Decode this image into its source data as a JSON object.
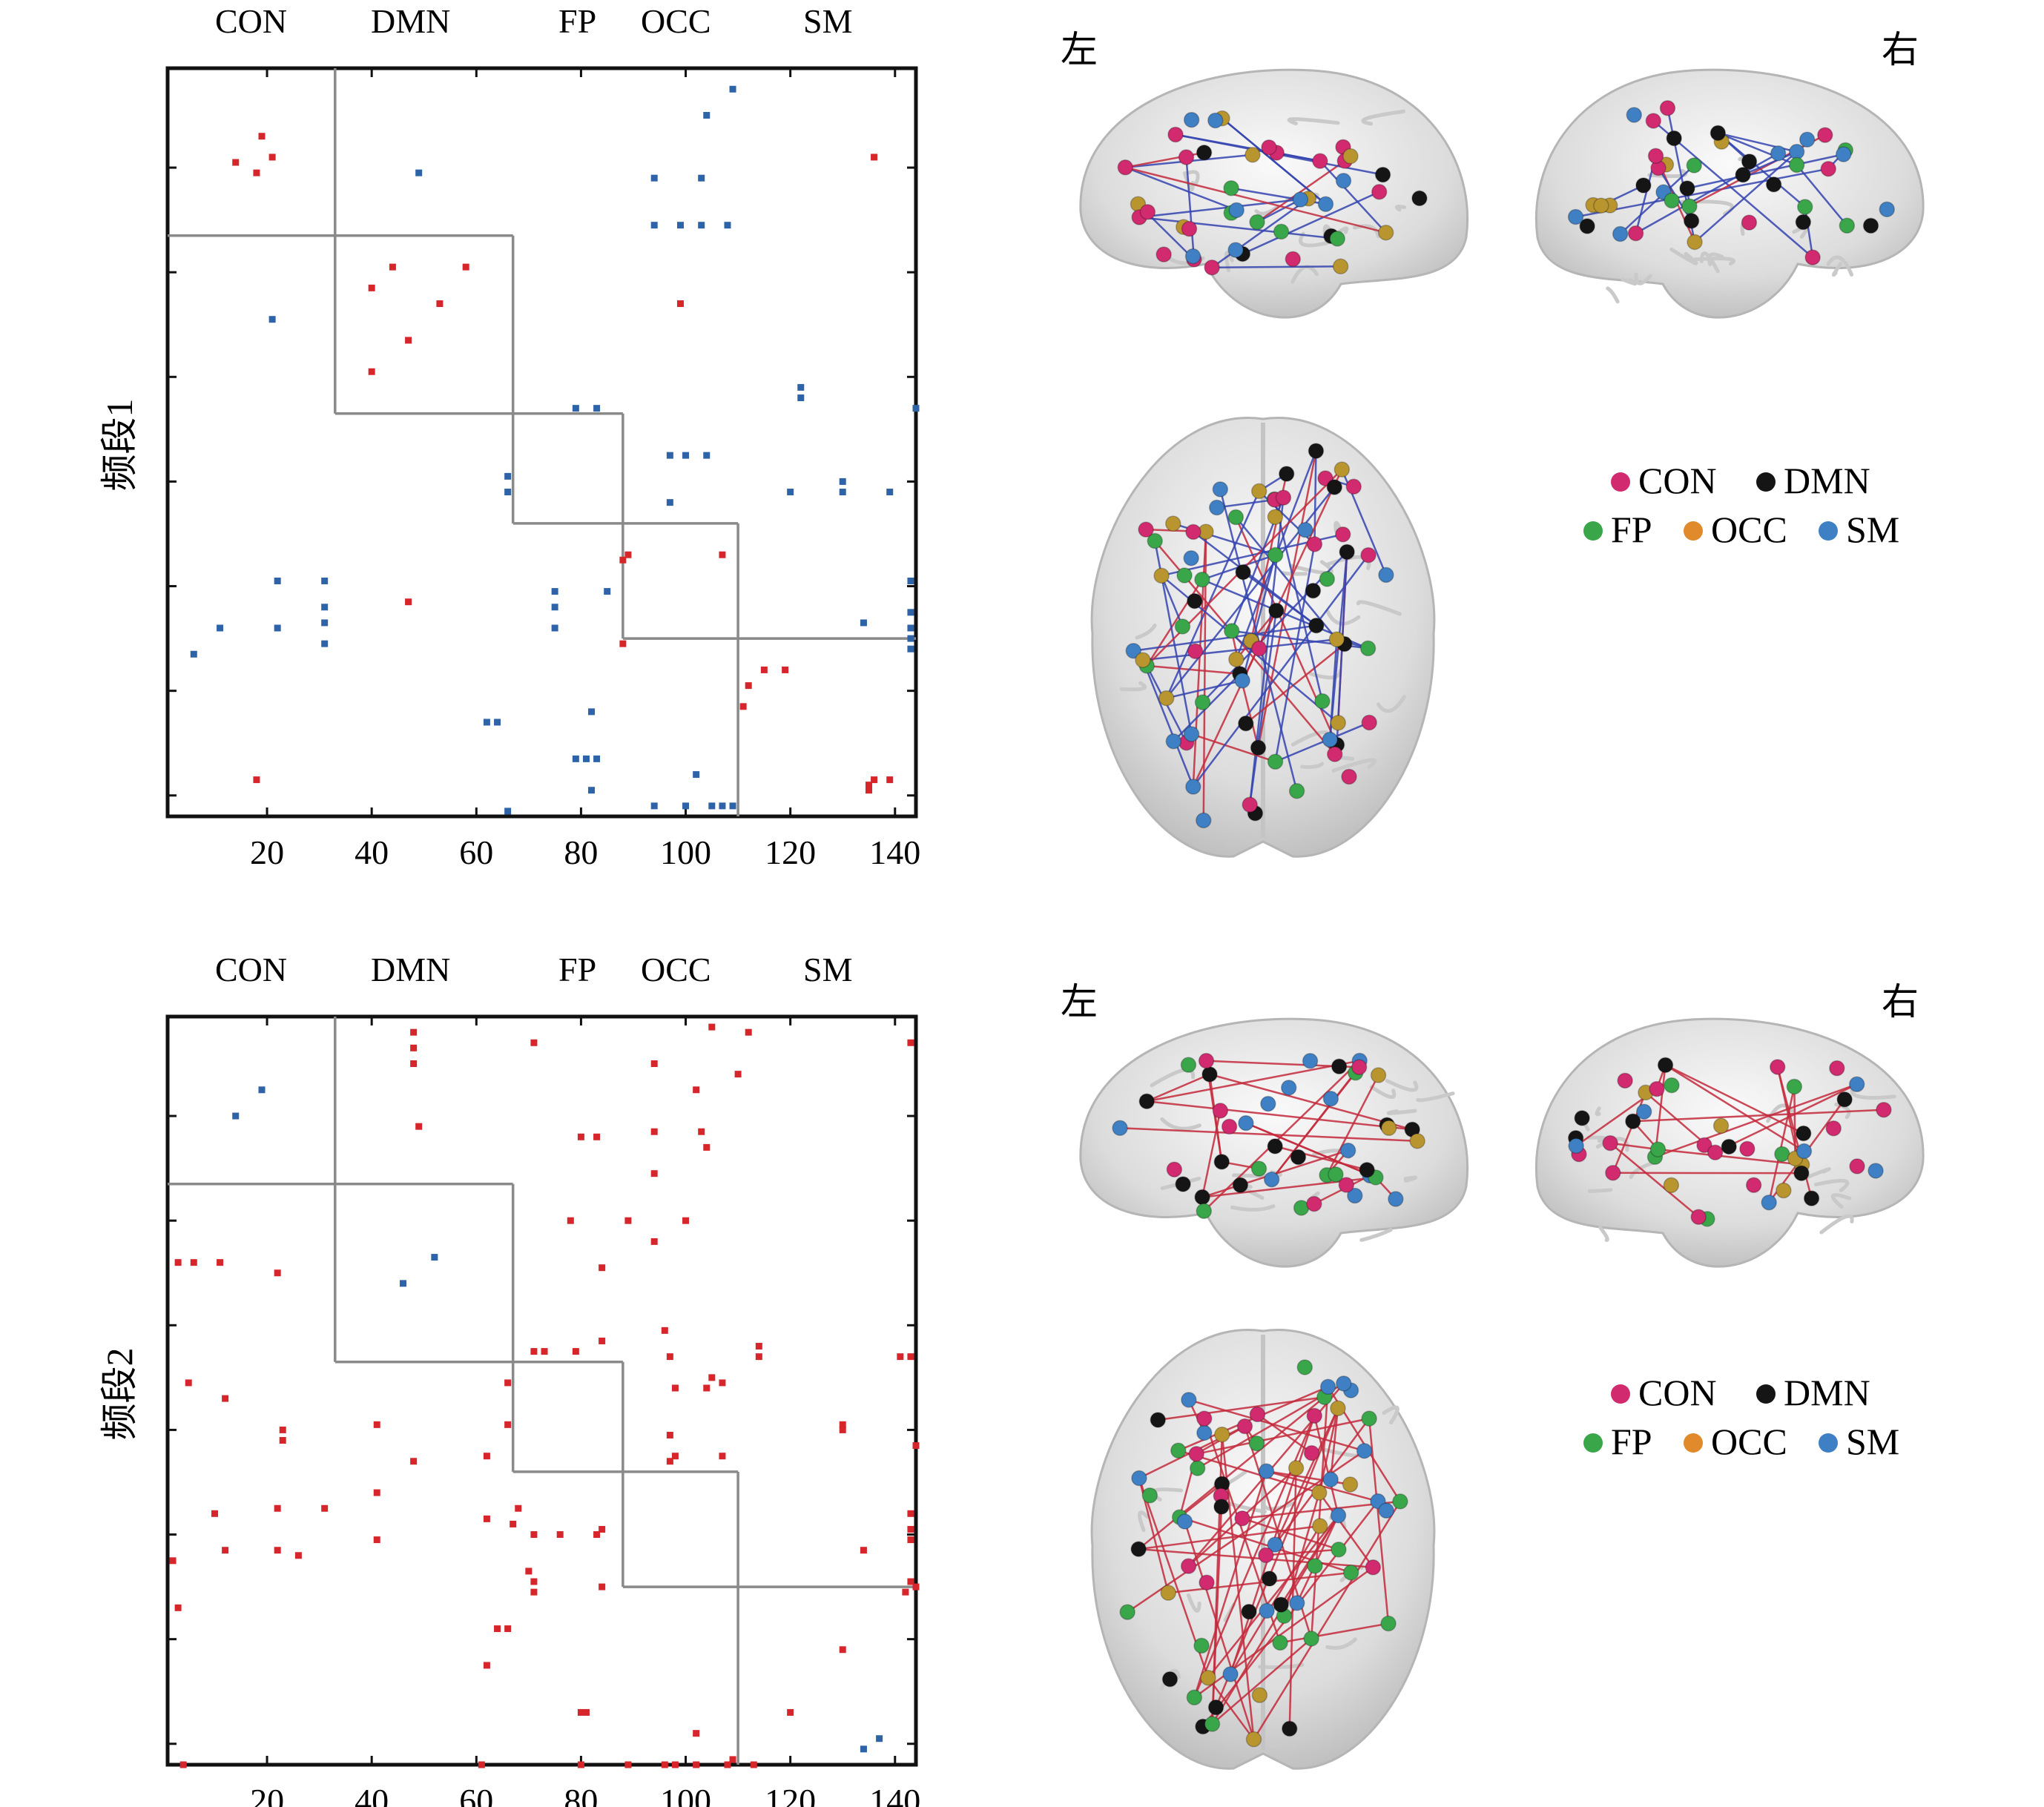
{
  "colors": {
    "positive": "#d7262b",
    "negative": "#2f63a8",
    "CON": "#d12a6f",
    "DMN": "#151515",
    "FP": "#3aa64a",
    "OCC": "#e08a2c",
    "SM": "#3f7fc4",
    "edge_red": "#c42a3c",
    "edge_blue": "#3444b0"
  },
  "network_labels": [
    "CON",
    "DMN",
    "FP",
    "OCC",
    "SM"
  ],
  "legend": [
    {
      "name": "CON",
      "color": "#d12a6f"
    },
    {
      "name": "DMN",
      "color": "#151515"
    },
    {
      "name": "FP",
      "color": "#3aa64a"
    },
    {
      "name": "OCC",
      "color": "#e08a2c"
    },
    {
      "name": "SM",
      "color": "#3f7fc4"
    }
  ],
  "side_labels": {
    "left": "左",
    "right": "右"
  },
  "chart_data": [
    {
      "type": "heatmap",
      "ylabel": "频段1",
      "xticks": [
        20,
        40,
        60,
        80,
        100,
        120,
        140
      ],
      "xlim": [
        1,
        144
      ],
      "ylim": [
        1,
        144
      ],
      "network_boundaries": [
        33,
        67,
        88,
        110
      ],
      "points": [
        {
          "x": 14,
          "y": 19,
          "s": "pos"
        },
        {
          "x": 18,
          "y": 21,
          "s": "pos"
        },
        {
          "x": 19,
          "y": 14,
          "s": "pos"
        },
        {
          "x": 21,
          "y": 18,
          "s": "pos"
        },
        {
          "x": 49,
          "y": 21,
          "s": "neg"
        },
        {
          "x": 109,
          "y": 5,
          "s": "neg"
        },
        {
          "x": 104,
          "y": 10,
          "s": "neg"
        },
        {
          "x": 94,
          "y": 22,
          "s": "neg"
        },
        {
          "x": 103,
          "y": 22,
          "s": "neg"
        },
        {
          "x": 94,
          "y": 31,
          "s": "neg"
        },
        {
          "x": 99,
          "y": 31,
          "s": "neg"
        },
        {
          "x": 103,
          "y": 31,
          "s": "neg"
        },
        {
          "x": 108,
          "y": 31,
          "s": "neg"
        },
        {
          "x": 136,
          "y": 18,
          "s": "pos"
        },
        {
          "x": 40,
          "y": 43,
          "s": "pos"
        },
        {
          "x": 44,
          "y": 39,
          "s": "pos"
        },
        {
          "x": 58,
          "y": 39,
          "s": "pos"
        },
        {
          "x": 53,
          "y": 46,
          "s": "pos"
        },
        {
          "x": 47,
          "y": 53,
          "s": "pos"
        },
        {
          "x": 40,
          "y": 59,
          "s": "pos"
        },
        {
          "x": 21,
          "y": 49,
          "s": "neg"
        },
        {
          "x": 99,
          "y": 46,
          "s": "pos"
        },
        {
          "x": 122,
          "y": 62,
          "s": "neg"
        },
        {
          "x": 122,
          "y": 64,
          "s": "neg"
        },
        {
          "x": 79,
          "y": 66,
          "s": "neg"
        },
        {
          "x": 83,
          "y": 66,
          "s": "neg"
        },
        {
          "x": 144,
          "y": 66,
          "s": "neg"
        },
        {
          "x": 97,
          "y": 75,
          "s": "neg"
        },
        {
          "x": 100,
          "y": 75,
          "s": "neg"
        },
        {
          "x": 104,
          "y": 75,
          "s": "neg"
        },
        {
          "x": 66,
          "y": 79,
          "s": "neg"
        },
        {
          "x": 66,
          "y": 82,
          "s": "neg"
        },
        {
          "x": 97,
          "y": 84,
          "s": "neg"
        },
        {
          "x": 120,
          "y": 82,
          "s": "neg"
        },
        {
          "x": 130,
          "y": 80,
          "s": "neg"
        },
        {
          "x": 130,
          "y": 82,
          "s": "neg"
        },
        {
          "x": 139,
          "y": 82,
          "s": "neg"
        },
        {
          "x": 89,
          "y": 94,
          "s": "pos"
        },
        {
          "x": 88,
          "y": 95,
          "s": "pos"
        },
        {
          "x": 107,
          "y": 94,
          "s": "pos"
        },
        {
          "x": 22,
          "y": 99,
          "s": "neg"
        },
        {
          "x": 31,
          "y": 99,
          "s": "neg"
        },
        {
          "x": 22,
          "y": 108,
          "s": "neg"
        },
        {
          "x": 31,
          "y": 104,
          "s": "neg"
        },
        {
          "x": 31,
          "y": 107,
          "s": "neg"
        },
        {
          "x": 31,
          "y": 111,
          "s": "neg"
        },
        {
          "x": 11,
          "y": 108,
          "s": "neg"
        },
        {
          "x": 6,
          "y": 113,
          "s": "neg"
        },
        {
          "x": 47,
          "y": 103,
          "s": "pos"
        },
        {
          "x": 75,
          "y": 101,
          "s": "neg"
        },
        {
          "x": 75,
          "y": 104,
          "s": "neg"
        },
        {
          "x": 75,
          "y": 108,
          "s": "neg"
        },
        {
          "x": 85,
          "y": 101,
          "s": "neg"
        },
        {
          "x": 88,
          "y": 111,
          "s": "pos"
        },
        {
          "x": 134,
          "y": 107,
          "s": "neg"
        },
        {
          "x": 143,
          "y": 99,
          "s": "neg"
        },
        {
          "x": 143,
          "y": 105,
          "s": "neg"
        },
        {
          "x": 143,
          "y": 108,
          "s": "neg"
        },
        {
          "x": 143,
          "y": 110,
          "s": "neg"
        },
        {
          "x": 143,
          "y": 112,
          "s": "neg"
        },
        {
          "x": 115,
          "y": 116,
          "s": "pos"
        },
        {
          "x": 119,
          "y": 116,
          "s": "pos"
        },
        {
          "x": 112,
          "y": 119,
          "s": "pos"
        },
        {
          "x": 111,
          "y": 123,
          "s": "pos"
        },
        {
          "x": 62,
          "y": 126,
          "s": "neg"
        },
        {
          "x": 64,
          "y": 126,
          "s": "neg"
        },
        {
          "x": 82,
          "y": 124,
          "s": "neg"
        },
        {
          "x": 79,
          "y": 133,
          "s": "neg"
        },
        {
          "x": 81,
          "y": 133,
          "s": "neg"
        },
        {
          "x": 83,
          "y": 133,
          "s": "neg"
        },
        {
          "x": 82,
          "y": 139,
          "s": "neg"
        },
        {
          "x": 102,
          "y": 136,
          "s": "neg"
        },
        {
          "x": 18,
          "y": 137,
          "s": "pos"
        },
        {
          "x": 135,
          "y": 138,
          "s": "pos"
        },
        {
          "x": 136,
          "y": 137,
          "s": "pos"
        },
        {
          "x": 139,
          "y": 137,
          "s": "pos"
        },
        {
          "x": 135,
          "y": 139,
          "s": "pos"
        },
        {
          "x": 94,
          "y": 142,
          "s": "neg"
        },
        {
          "x": 100,
          "y": 142,
          "s": "neg"
        },
        {
          "x": 105,
          "y": 142,
          "s": "neg"
        },
        {
          "x": 107,
          "y": 142,
          "s": "neg"
        },
        {
          "x": 109,
          "y": 142,
          "s": "neg"
        },
        {
          "x": 66,
          "y": 143,
          "s": "neg"
        }
      ]
    },
    {
      "type": "heatmap",
      "ylabel": "频段2",
      "xticks": [
        20,
        40,
        60,
        80,
        100,
        120,
        140
      ],
      "xlim": [
        1,
        144
      ],
      "ylim": [
        1,
        144
      ],
      "network_boundaries": [
        33,
        67,
        88,
        110
      ],
      "points": [
        {
          "x": 14,
          "y": 20,
          "s": "neg"
        },
        {
          "x": 19,
          "y": 15,
          "s": "neg"
        },
        {
          "x": 48,
          "y": 4,
          "s": "pos"
        },
        {
          "x": 48,
          "y": 7,
          "s": "pos"
        },
        {
          "x": 48,
          "y": 10,
          "s": "pos"
        },
        {
          "x": 49,
          "y": 22,
          "s": "pos"
        },
        {
          "x": 71,
          "y": 6,
          "s": "pos"
        },
        {
          "x": 80,
          "y": 24,
          "s": "pos"
        },
        {
          "x": 83,
          "y": 24,
          "s": "pos"
        },
        {
          "x": 94,
          "y": 10,
          "s": "pos"
        },
        {
          "x": 94,
          "y": 23,
          "s": "pos"
        },
        {
          "x": 94,
          "y": 31,
          "s": "pos"
        },
        {
          "x": 102,
          "y": 15,
          "s": "pos"
        },
        {
          "x": 103,
          "y": 23,
          "s": "pos"
        },
        {
          "x": 104,
          "y": 26,
          "s": "pos"
        },
        {
          "x": 105,
          "y": 3,
          "s": "pos"
        },
        {
          "x": 110,
          "y": 12,
          "s": "pos"
        },
        {
          "x": 112,
          "y": 4,
          "s": "pos"
        },
        {
          "x": 143,
          "y": 6,
          "s": "pos"
        },
        {
          "x": 3,
          "y": 48,
          "s": "pos"
        },
        {
          "x": 6,
          "y": 48,
          "s": "pos"
        },
        {
          "x": 11,
          "y": 48,
          "s": "pos"
        },
        {
          "x": 22,
          "y": 50,
          "s": "pos"
        },
        {
          "x": 52,
          "y": 47,
          "s": "neg"
        },
        {
          "x": 46,
          "y": 52,
          "s": "neg"
        },
        {
          "x": 78,
          "y": 40,
          "s": "pos"
        },
        {
          "x": 89,
          "y": 40,
          "s": "pos"
        },
        {
          "x": 100,
          "y": 40,
          "s": "pos"
        },
        {
          "x": 84,
          "y": 49,
          "s": "pos"
        },
        {
          "x": 94,
          "y": 44,
          "s": "pos"
        },
        {
          "x": 5,
          "y": 71,
          "s": "pos"
        },
        {
          "x": 12,
          "y": 74,
          "s": "pos"
        },
        {
          "x": 23,
          "y": 80,
          "s": "pos"
        },
        {
          "x": 23,
          "y": 82,
          "s": "pos"
        },
        {
          "x": 41,
          "y": 79,
          "s": "pos"
        },
        {
          "x": 48,
          "y": 86,
          "s": "pos"
        },
        {
          "x": 66,
          "y": 71,
          "s": "pos"
        },
        {
          "x": 66,
          "y": 79,
          "s": "pos"
        },
        {
          "x": 71,
          "y": 65,
          "s": "pos"
        },
        {
          "x": 73,
          "y": 65,
          "s": "pos"
        },
        {
          "x": 79,
          "y": 65,
          "s": "pos"
        },
        {
          "x": 84,
          "y": 63,
          "s": "pos"
        },
        {
          "x": 62,
          "y": 85,
          "s": "pos"
        },
        {
          "x": 96,
          "y": 61,
          "s": "pos"
        },
        {
          "x": 97,
          "y": 66,
          "s": "pos"
        },
        {
          "x": 98,
          "y": 72,
          "s": "pos"
        },
        {
          "x": 97,
          "y": 81,
          "s": "pos"
        },
        {
          "x": 97,
          "y": 86,
          "s": "pos"
        },
        {
          "x": 98,
          "y": 85,
          "s": "pos"
        },
        {
          "x": 104,
          "y": 72,
          "s": "pos"
        },
        {
          "x": 105,
          "y": 70,
          "s": "pos"
        },
        {
          "x": 107,
          "y": 71,
          "s": "pos"
        },
        {
          "x": 107,
          "y": 85,
          "s": "pos"
        },
        {
          "x": 114,
          "y": 64,
          "s": "pos"
        },
        {
          "x": 114,
          "y": 66,
          "s": "pos"
        },
        {
          "x": 130,
          "y": 79,
          "s": "pos"
        },
        {
          "x": 130,
          "y": 80,
          "s": "pos"
        },
        {
          "x": 141,
          "y": 66,
          "s": "pos"
        },
        {
          "x": 143,
          "y": 66,
          "s": "pos"
        },
        {
          "x": 144,
          "y": 83,
          "s": "pos"
        },
        {
          "x": 10,
          "y": 96,
          "s": "pos"
        },
        {
          "x": 12,
          "y": 103,
          "s": "pos"
        },
        {
          "x": 22,
          "y": 95,
          "s": "pos"
        },
        {
          "x": 22,
          "y": 103,
          "s": "pos"
        },
        {
          "x": 26,
          "y": 104,
          "s": "pos"
        },
        {
          "x": 31,
          "y": 95,
          "s": "pos"
        },
        {
          "x": 41,
          "y": 92,
          "s": "pos"
        },
        {
          "x": 41,
          "y": 101,
          "s": "pos"
        },
        {
          "x": 2,
          "y": 105,
          "s": "pos"
        },
        {
          "x": 3,
          "y": 114,
          "s": "pos"
        },
        {
          "x": 62,
          "y": 97,
          "s": "pos"
        },
        {
          "x": 67,
          "y": 98,
          "s": "pos"
        },
        {
          "x": 68,
          "y": 95,
          "s": "pos"
        },
        {
          "x": 71,
          "y": 100,
          "s": "pos"
        },
        {
          "x": 71,
          "y": 109,
          "s": "pos"
        },
        {
          "x": 70,
          "y": 107,
          "s": "pos"
        },
        {
          "x": 71,
          "y": 111,
          "s": "pos"
        },
        {
          "x": 76,
          "y": 100,
          "s": "pos"
        },
        {
          "x": 83,
          "y": 100,
          "s": "pos"
        },
        {
          "x": 84,
          "y": 99,
          "s": "pos"
        },
        {
          "x": 84,
          "y": 110,
          "s": "pos"
        },
        {
          "x": 64,
          "y": 118,
          "s": "pos"
        },
        {
          "x": 66,
          "y": 118,
          "s": "pos"
        },
        {
          "x": 62,
          "y": 125,
          "s": "pos"
        },
        {
          "x": 80,
          "y": 134,
          "s": "pos"
        },
        {
          "x": 81,
          "y": 134,
          "s": "pos"
        },
        {
          "x": 143,
          "y": 96,
          "s": "pos"
        },
        {
          "x": 143,
          "y": 99,
          "s": "pos"
        },
        {
          "x": 143,
          "y": 101,
          "s": "pos"
        },
        {
          "x": 143,
          "y": 109,
          "s": "pos"
        },
        {
          "x": 144,
          "y": 110,
          "s": "pos"
        },
        {
          "x": 142,
          "y": 111,
          "s": "pos"
        },
        {
          "x": 134,
          "y": 103,
          "s": "pos"
        },
        {
          "x": 130,
          "y": 122,
          "s": "pos"
        },
        {
          "x": 120,
          "y": 134,
          "s": "pos"
        },
        {
          "x": 137,
          "y": 139,
          "s": "neg"
        },
        {
          "x": 134,
          "y": 141,
          "s": "neg"
        },
        {
          "x": 102,
          "y": 138,
          "s": "pos"
        },
        {
          "x": 4,
          "y": 144,
          "s": "pos"
        },
        {
          "x": 61,
          "y": 144,
          "s": "pos"
        },
        {
          "x": 80,
          "y": 144,
          "s": "pos"
        },
        {
          "x": 89,
          "y": 144,
          "s": "pos"
        },
        {
          "x": 96,
          "y": 144,
          "s": "pos"
        },
        {
          "x": 98,
          "y": 144,
          "s": "pos"
        },
        {
          "x": 102,
          "y": 144,
          "s": "pos"
        },
        {
          "x": 108,
          "y": 144,
          "s": "pos"
        },
        {
          "x": 109,
          "y": 143,
          "s": "pos"
        },
        {
          "x": 113,
          "y": 144,
          "s": "pos"
        }
      ]
    }
  ]
}
